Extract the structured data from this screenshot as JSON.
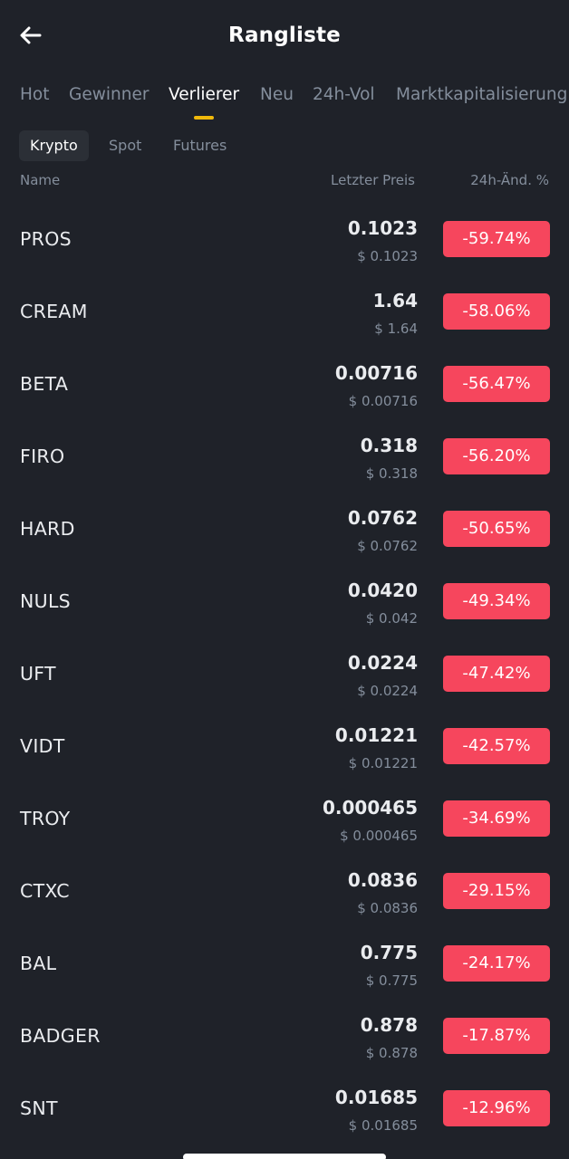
{
  "header": {
    "title": "Rangliste",
    "back_icon": "arrow-left-icon"
  },
  "main_tabs": [
    {
      "label": "Hot",
      "active": false
    },
    {
      "label": "Gewinner",
      "active": false
    },
    {
      "label": "Verlierer",
      "active": true
    },
    {
      "label": "Neu",
      "active": false
    },
    {
      "label": "24h-Vol",
      "active": false
    },
    {
      "label": "Marktkapitalisierung",
      "active": false
    }
  ],
  "sub_tabs": [
    {
      "label": "Krypto",
      "active": true
    },
    {
      "label": "Spot",
      "active": false
    },
    {
      "label": "Futures",
      "active": false
    }
  ],
  "columns": {
    "name": "Name",
    "last_price": "Letzter Preis",
    "change": "24h-Änd. %"
  },
  "rows": [
    {
      "symbol": "PROS",
      "price": "0.1023",
      "price_usd": "$ 0.1023",
      "change": "-59.74%"
    },
    {
      "symbol": "CREAM",
      "price": "1.64",
      "price_usd": "$ 1.64",
      "change": "-58.06%"
    },
    {
      "symbol": "BETA",
      "price": "0.00716",
      "price_usd": "$ 0.00716",
      "change": "-56.47%"
    },
    {
      "symbol": "FIRO",
      "price": "0.318",
      "price_usd": "$ 0.318",
      "change": "-56.20%"
    },
    {
      "symbol": "HARD",
      "price": "0.0762",
      "price_usd": "$ 0.0762",
      "change": "-50.65%"
    },
    {
      "symbol": "NULS",
      "price": "0.0420",
      "price_usd": "$ 0.042",
      "change": "-49.34%"
    },
    {
      "symbol": "UFT",
      "price": "0.0224",
      "price_usd": "$ 0.0224",
      "change": "-47.42%"
    },
    {
      "symbol": "VIDT",
      "price": "0.01221",
      "price_usd": "$ 0.01221",
      "change": "-42.57%"
    },
    {
      "symbol": "TROY",
      "price": "0.000465",
      "price_usd": "$ 0.000465",
      "change": "-34.69%"
    },
    {
      "symbol": "CTXC",
      "price": "0.0836",
      "price_usd": "$ 0.0836",
      "change": "-29.15%"
    },
    {
      "symbol": "BAL",
      "price": "0.775",
      "price_usd": "$ 0.775",
      "change": "-24.17%"
    },
    {
      "symbol": "BADGER",
      "price": "0.878",
      "price_usd": "$ 0.878",
      "change": "-17.87%"
    },
    {
      "symbol": "SNT",
      "price": "0.01685",
      "price_usd": "$ 0.01685",
      "change": "-12.96%"
    }
  ],
  "colors": {
    "background": "#1f2229",
    "accent": "#f0b90b",
    "negative": "#f6465d",
    "muted_text": "#848e9c",
    "primary_text": "#eaecef"
  }
}
